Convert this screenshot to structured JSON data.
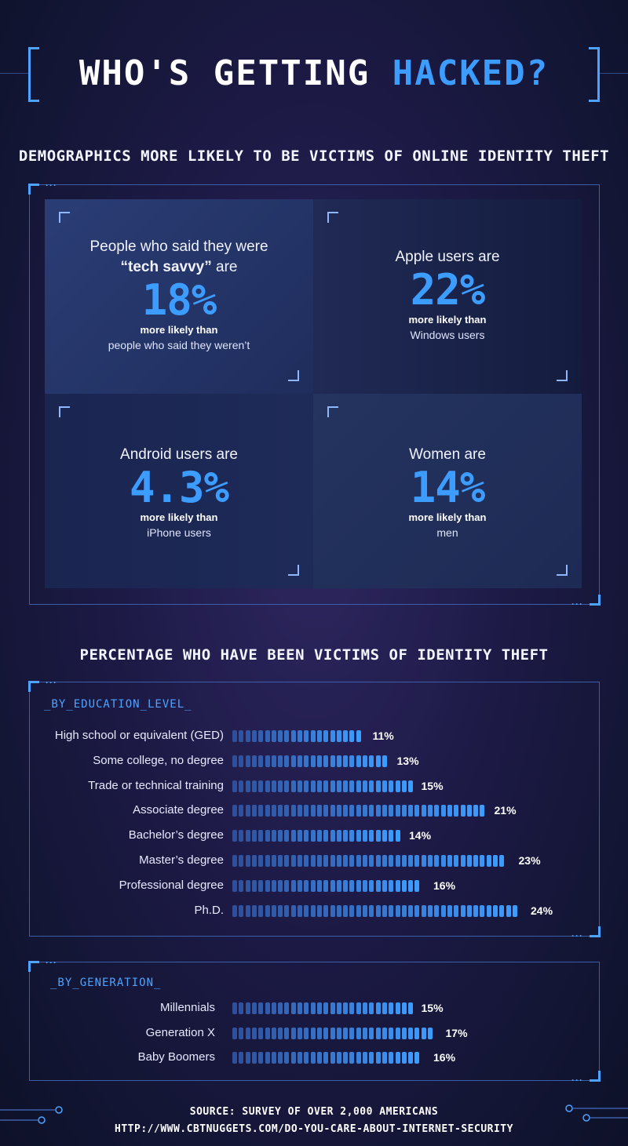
{
  "title": {
    "part1": "WHO'S GETTING",
    "part2": "HACKED?"
  },
  "demographics": {
    "heading": "DEMOGRAPHICS MORE LIKELY TO BE VICTIMS OF ONLINE IDENTITY THEFT",
    "stats": [
      {
        "lead1": "People who said they were",
        "lead_bold": "“tech savvy”",
        "lead2": " are",
        "percent": "18%",
        "more": "more likely than",
        "comparison": "people who said they weren’t"
      },
      {
        "lead1": "Apple users are",
        "percent": "22%",
        "more": "more likely than",
        "comparison": "Windows users"
      },
      {
        "lead1": "Android users are",
        "percent": "4.3%",
        "more": "more likely than",
        "comparison": "iPhone users"
      },
      {
        "lead1": "Women are",
        "percent": "14%",
        "more": "more likely than",
        "comparison": "men"
      }
    ]
  },
  "victims_heading": "PERCENTAGE WHO HAVE BEEN VICTIMS OF IDENTITY THEFT",
  "chart_data": [
    {
      "type": "bar",
      "title": "_BY_EDUCATION_LEVEL_",
      "orientation": "horizontal",
      "categories": [
        "High school or equivalent (GED)",
        "Some college, no degree",
        "Trade or technical training",
        "Associate degree",
        "Bachelor’s degree",
        "Master’s degree",
        "Professional degree",
        "Ph.D."
      ],
      "values": [
        11,
        13,
        15,
        21,
        14,
        23,
        16,
        24
      ],
      "value_labels": [
        "11%",
        "13%",
        "15%",
        "21%",
        "14%",
        "23%",
        "16%",
        "24%"
      ],
      "unit": "%",
      "grid": false,
      "color": "#3d9cff"
    },
    {
      "type": "bar",
      "title": "_BY_GENERATION_",
      "orientation": "horizontal",
      "categories": [
        "Millennials",
        "Generation X",
        "Baby Boomers"
      ],
      "values": [
        15,
        17,
        16
      ],
      "value_labels": [
        "15%",
        "17%",
        "16%"
      ],
      "unit": "%",
      "grid": false,
      "color": "#3d9cff"
    }
  ],
  "footer": {
    "source": "SOURCE:  SURVEY OF OVER 2,000 AMERICANS",
    "url": "HTTP://WWW.CBTNUGGETS.COM/DO-YOU-CARE-ABOUT-INTERNET-SECURITY"
  },
  "colors": {
    "accent": "#3d9cff",
    "panel_border": "#3b5ea8",
    "background": "#1d1a46"
  }
}
